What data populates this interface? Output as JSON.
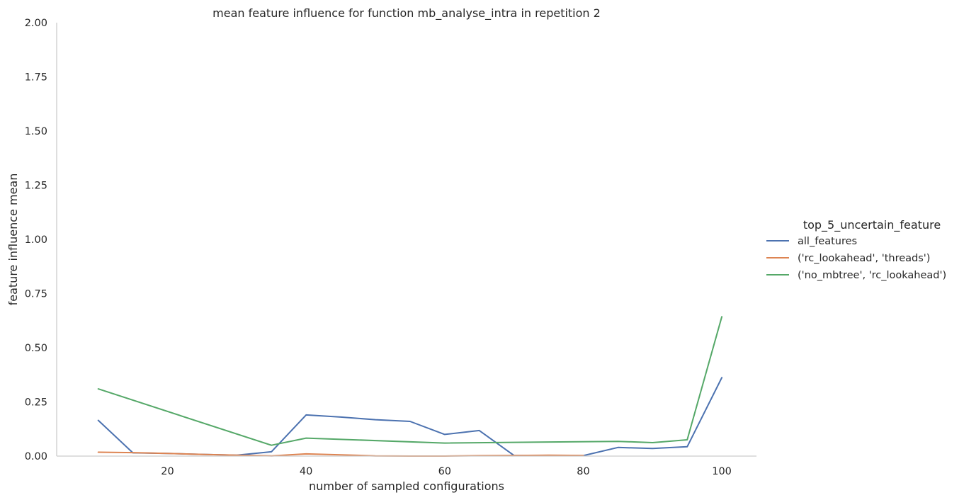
{
  "chart_data": {
    "type": "line",
    "title": "mean feature influence for function mb_analyse_intra in repetition 2",
    "xlabel": "number of sampled configurations",
    "ylabel": "feature influence mean",
    "xlim": [
      4,
      105
    ],
    "ylim": [
      0,
      2.0
    ],
    "xticks": [
      20,
      40,
      60,
      80,
      100
    ],
    "yticks": [
      0.0,
      0.25,
      0.5,
      0.75,
      1.0,
      1.25,
      1.5,
      1.75,
      2.0
    ],
    "xtick_labels": [
      "20",
      "40",
      "60",
      "80",
      "100"
    ],
    "ytick_labels": [
      "0.00",
      "0.25",
      "0.50",
      "0.75",
      "1.00",
      "1.25",
      "1.50",
      "1.75",
      "2.00"
    ],
    "grid": false,
    "legend_title": "top_5_uncertain_feature",
    "legend_position": "right",
    "series": [
      {
        "name": "all_features",
        "color": "#4c72b0",
        "x": [
          10,
          15,
          20,
          25,
          30,
          35,
          40,
          45,
          50,
          55,
          60,
          65,
          70,
          75,
          80,
          85,
          90,
          95,
          100
        ],
        "y": [
          0.165,
          0.015,
          0.012,
          0.008,
          0.004,
          0.02,
          0.19,
          0.18,
          0.168,
          0.16,
          0.1,
          0.118,
          0.003,
          0.003,
          0.002,
          0.04,
          0.035,
          0.043,
          0.362
        ]
      },
      {
        "name": "('rc_lookahead', 'threads')",
        "color": "#dd8452",
        "x": [
          10,
          15,
          20,
          25,
          30,
          35,
          40,
          45,
          50,
          55,
          60,
          65,
          70,
          75,
          80
        ],
        "y": [
          0.018,
          0.016,
          0.012,
          0.008,
          0.004,
          0.001,
          0.01,
          0.006,
          0.001,
          0.0,
          0.0,
          0.002,
          0.003,
          0.004,
          0.003
        ]
      },
      {
        "name": "('no_mbtree', 'rc_lookahead')",
        "color": "#55a868",
        "x": [
          10,
          35,
          40,
          60,
          85,
          90,
          95,
          100
        ],
        "y": [
          0.31,
          0.05,
          0.083,
          0.06,
          0.068,
          0.062,
          0.075,
          0.643
        ]
      }
    ]
  }
}
